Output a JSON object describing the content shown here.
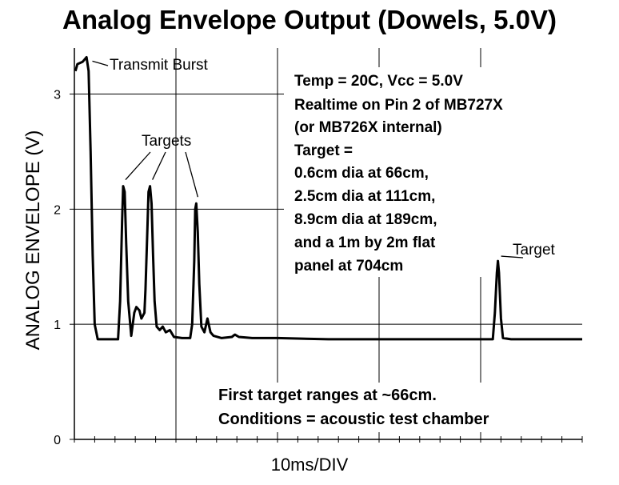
{
  "chart_data": {
    "type": "line",
    "title": "Analog Envelope Output (Dowels, 5.0V)",
    "xlabel": "10ms/DIV",
    "ylabel": "ANALOG ENVELOPE (V)",
    "ylim": [
      0,
      3.4
    ],
    "xlim": [
      0,
      50
    ],
    "yticks": [
      0,
      1,
      2,
      3
    ],
    "ytick_labels": [
      "0",
      "1",
      "2",
      "3"
    ],
    "grid": true,
    "series": [
      {
        "points": [
          [
            0.1,
            3.2
          ],
          [
            0.3,
            3.26
          ],
          [
            0.8,
            3.28
          ],
          [
            1.2,
            3.32
          ],
          [
            1.4,
            3.2
          ],
          [
            1.6,
            2.5
          ],
          [
            1.8,
            1.6
          ],
          [
            2.0,
            1.0
          ],
          [
            2.3,
            0.87
          ],
          [
            4.3,
            0.87
          ],
          [
            4.5,
            1.2
          ],
          [
            4.7,
            1.9
          ],
          [
            4.8,
            2.2
          ],
          [
            4.95,
            2.15
          ],
          [
            5.1,
            1.7
          ],
          [
            5.3,
            1.2
          ],
          [
            5.6,
            0.9
          ],
          [
            5.9,
            1.1
          ],
          [
            6.1,
            1.15
          ],
          [
            6.4,
            1.12
          ],
          [
            6.6,
            1.05
          ],
          [
            6.9,
            1.1
          ],
          [
            7.0,
            1.3
          ],
          [
            7.2,
            1.85
          ],
          [
            7.3,
            2.15
          ],
          [
            7.45,
            2.2
          ],
          [
            7.6,
            2.05
          ],
          [
            7.75,
            1.6
          ],
          [
            7.9,
            1.2
          ],
          [
            8.1,
            0.98
          ],
          [
            8.4,
            0.95
          ],
          [
            8.7,
            0.98
          ],
          [
            9.0,
            0.93
          ],
          [
            9.4,
            0.95
          ],
          [
            9.8,
            0.89
          ],
          [
            10.6,
            0.88
          ],
          [
            11.4,
            0.88
          ],
          [
            11.6,
            1.0
          ],
          [
            11.8,
            1.55
          ],
          [
            11.9,
            2.0
          ],
          [
            12.0,
            2.05
          ],
          [
            12.15,
            1.8
          ],
          [
            12.3,
            1.35
          ],
          [
            12.5,
            0.98
          ],
          [
            12.8,
            0.93
          ],
          [
            13.1,
            1.05
          ],
          [
            13.4,
            0.93
          ],
          [
            13.7,
            0.9
          ],
          [
            14.5,
            0.88
          ],
          [
            15.5,
            0.89
          ],
          [
            15.8,
            0.91
          ],
          [
            16.2,
            0.89
          ],
          [
            17.5,
            0.88
          ],
          [
            20,
            0.88
          ],
          [
            25,
            0.87
          ],
          [
            30,
            0.87
          ],
          [
            35,
            0.87
          ],
          [
            40,
            0.87
          ],
          [
            41.2,
            0.87
          ],
          [
            41.4,
            1.1
          ],
          [
            41.6,
            1.45
          ],
          [
            41.7,
            1.55
          ],
          [
            41.8,
            1.45
          ],
          [
            42.0,
            1.05
          ],
          [
            42.2,
            0.88
          ],
          [
            43,
            0.87
          ],
          [
            46,
            0.87
          ],
          [
            50,
            0.87
          ]
        ]
      }
    ],
    "annotations": [
      {
        "text": "Transmit Burst",
        "x": 1.3,
        "y": 3.3
      },
      {
        "text": "Targets",
        "x": 4.8,
        "y": 2.2
      },
      {
        "text": "Targets",
        "x": 7.45,
        "y": 2.2
      },
      {
        "text": "Targets",
        "x": 12.0,
        "y": 2.05
      },
      {
        "text": "Target",
        "x": 41.7,
        "y": 1.55
      }
    ],
    "notes": [
      "Temp = 20C, Vcc = 5.0V",
      "Realtime on Pin 2 of MB727X",
      "(or MB726X internal)",
      "Target =",
      "0.6cm dia at 66cm,",
      "2.5cm dia at 111cm,",
      "8.9cm dia at 189cm,",
      "and a 1m by 2m flat",
      "panel at 704cm"
    ],
    "bottom_notes": [
      "First target ranges at ~66cm.",
      "Conditions = acoustic test chamber"
    ],
    "labels": {
      "transmit": "Transmit Burst",
      "targets": "Targets",
      "target": "Target"
    }
  }
}
